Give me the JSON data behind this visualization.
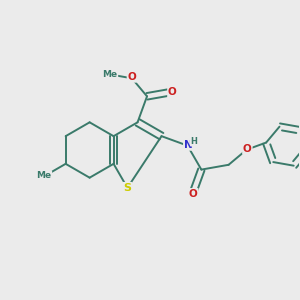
{
  "background_color": "#ebebeb",
  "bond_color": "#3a7a6a",
  "bond_width": 1.4,
  "dbo": 0.05,
  "atom_colors": {
    "S": "#cccc00",
    "N": "#3030cc",
    "O": "#cc2020",
    "H": "#3a7a6a",
    "C": "#3a7a6a"
  },
  "figsize": [
    3.0,
    3.0
  ],
  "dpi": 100
}
